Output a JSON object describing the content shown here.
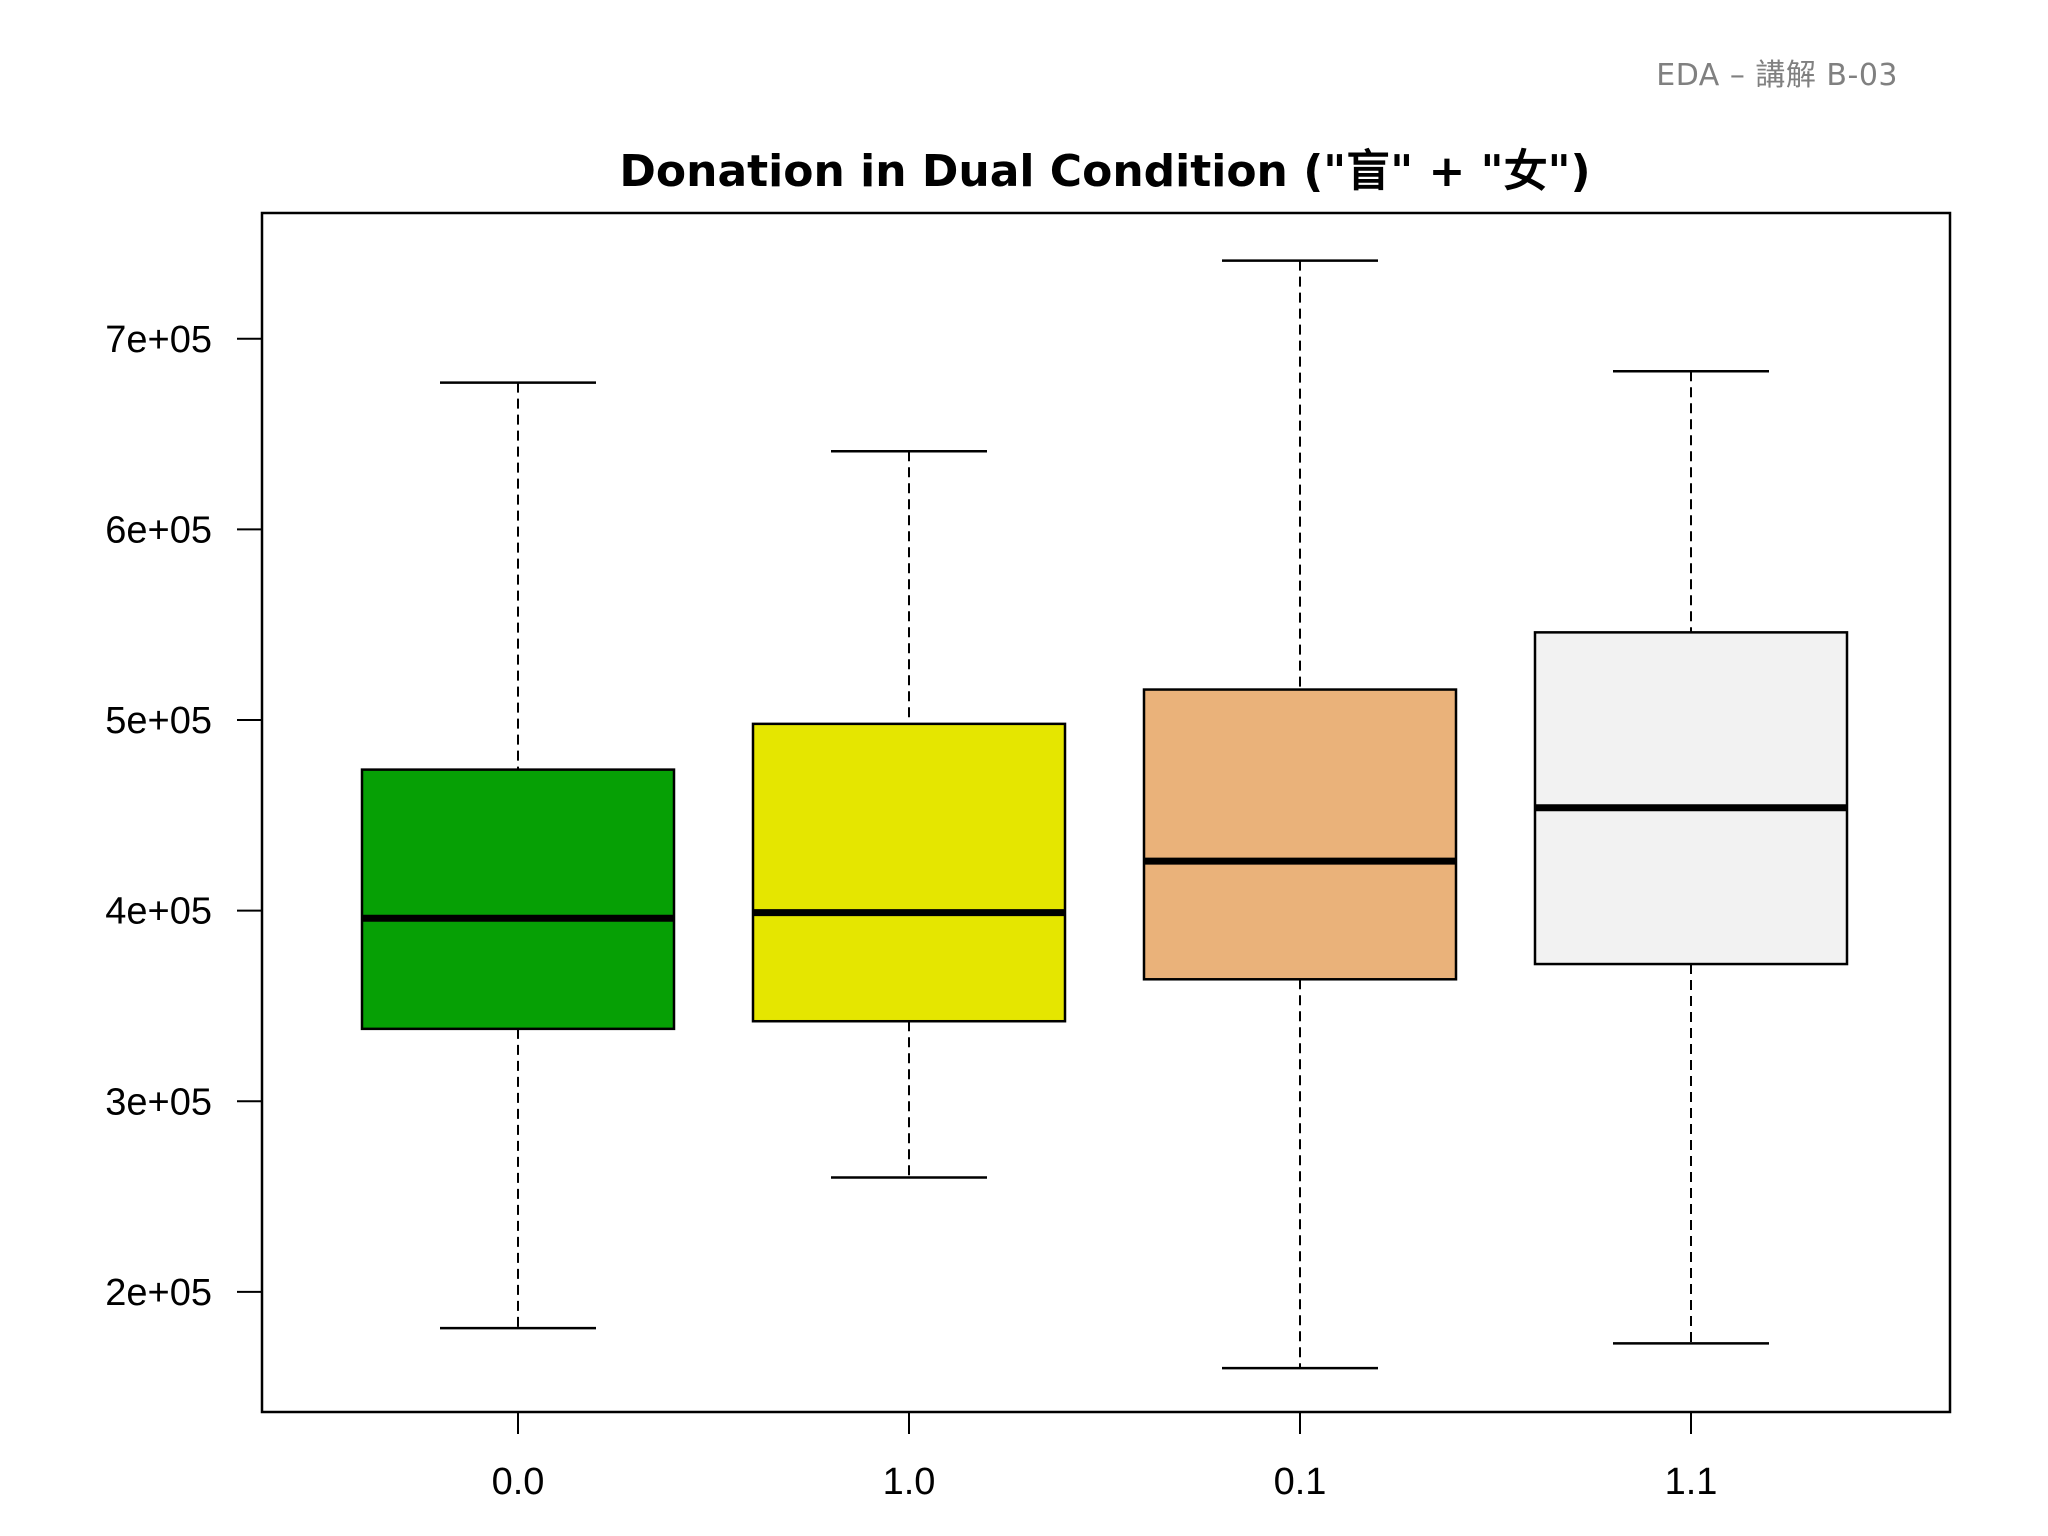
{
  "header": {
    "page_label": "EDA – 講解 B-03"
  },
  "chart_data": {
    "type": "box",
    "title": "Donation in Dual Condition (\"盲\" + \"女\")",
    "xlabel": "",
    "ylabel": "",
    "categories": [
      "0.0",
      "1.0",
      "0.1",
      "1.1"
    ],
    "y_ticks": [
      200000,
      300000,
      400000,
      500000,
      600000,
      700000
    ],
    "y_tick_labels": [
      "2e+05",
      "3e+05",
      "4e+05",
      "5e+05",
      "6e+05",
      "7e+05"
    ],
    "ylim": [
      137000,
      766000
    ],
    "boxes": [
      {
        "category": "0.0",
        "min": 181000,
        "q1": 338000,
        "median": 396000,
        "q3": 474000,
        "max": 677000,
        "color": "#06A005"
      },
      {
        "category": "1.0",
        "min": 260000,
        "q1": 342000,
        "median": 399000,
        "q3": 498000,
        "max": 641000,
        "color": "#E5E600"
      },
      {
        "category": "0.1",
        "min": 160000,
        "q1": 364000,
        "median": 426000,
        "q3": 516000,
        "max": 741000,
        "color": "#EAB27A"
      },
      {
        "category": "1.1",
        "min": 173000,
        "q1": 372000,
        "median": 454000,
        "q3": 546000,
        "max": 683000,
        "color": "#F2F2F2"
      }
    ],
    "grid": false,
    "legend": "none"
  }
}
